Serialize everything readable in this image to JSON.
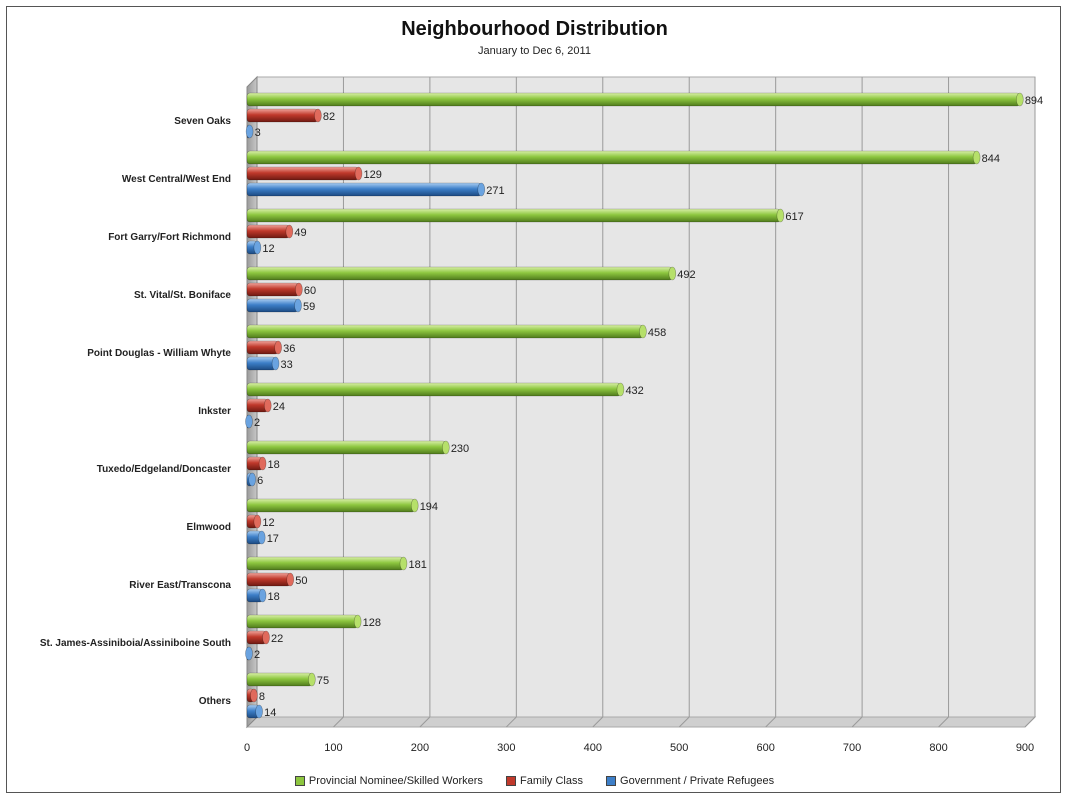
{
  "chart_data": {
    "type": "bar",
    "orientation": "horizontal",
    "title": "Neighbourhood Distribution",
    "subtitle": "January to Dec 6, 2011",
    "categories": [
      "Seven Oaks",
      "West Central/West End",
      "Fort Garry/Fort Richmond",
      "St. Vital/St. Boniface",
      "Point Douglas - William Whyte",
      "Inkster",
      "Tuxedo/Edgeland/Doncaster",
      "Elmwood",
      "River East/Transcona",
      "St. James-Assiniboia/Assiniboine South",
      "Others"
    ],
    "series": [
      {
        "name": "Provincial Nominee/Skilled Workers",
        "color": "#8dc63f",
        "values": [
          894,
          844,
          617,
          492,
          458,
          432,
          230,
          194,
          181,
          128,
          75
        ]
      },
      {
        "name": "Family Class",
        "color": "#c0392b",
        "values": [
          82,
          129,
          49,
          60,
          36,
          24,
          18,
          12,
          50,
          22,
          8
        ]
      },
      {
        "name": "Government / Private Refugees",
        "color": "#3d7fc8",
        "values": [
          3,
          271,
          12,
          59,
          33,
          2,
          6,
          17,
          18,
          2,
          14
        ]
      }
    ],
    "xticks": [
      0,
      100,
      200,
      300,
      400,
      500,
      600,
      700,
      800,
      900
    ],
    "xlim": [
      0,
      900
    ],
    "grid": true,
    "legend_position": "bottom"
  }
}
